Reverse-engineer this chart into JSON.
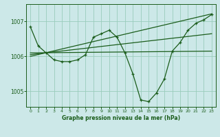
{
  "bg_color": "#cce8e8",
  "grid_color": "#99ccbb",
  "line_color": "#1a5c1a",
  "title": "Graphe pression niveau de la mer (hPa)",
  "xlim": [
    -0.5,
    23.5
  ],
  "ylim": [
    1004.55,
    1007.5
  ],
  "yticks": [
    1005,
    1006,
    1007
  ],
  "xticks": [
    0,
    1,
    2,
    3,
    4,
    5,
    6,
    7,
    8,
    9,
    10,
    11,
    12,
    13,
    14,
    15,
    16,
    17,
    18,
    19,
    20,
    21,
    22,
    23
  ],
  "series1": {
    "x": [
      0,
      1,
      2,
      3,
      4,
      5,
      6,
      7,
      8,
      9,
      10,
      11,
      12,
      13,
      14,
      15,
      16,
      17,
      18,
      19,
      20,
      21,
      22,
      23
    ],
    "y": [
      1006.85,
      1006.3,
      1006.1,
      1005.9,
      1005.85,
      1005.85,
      1005.9,
      1006.05,
      1006.55,
      1006.65,
      1006.75,
      1006.55,
      1006.1,
      1005.5,
      1004.75,
      1004.7,
      1004.95,
      1005.35,
      1006.15,
      1006.4,
      1006.75,
      1006.95,
      1007.05,
      1007.2
    ]
  },
  "series2": {
    "x": [
      0,
      23
    ],
    "y": [
      1006.0,
      1007.22
    ]
  },
  "series3": {
    "x": [
      0,
      23
    ],
    "y": [
      1006.1,
      1006.15
    ]
  },
  "series4": {
    "x": [
      0,
      23
    ],
    "y": [
      1006.05,
      1006.65
    ]
  }
}
